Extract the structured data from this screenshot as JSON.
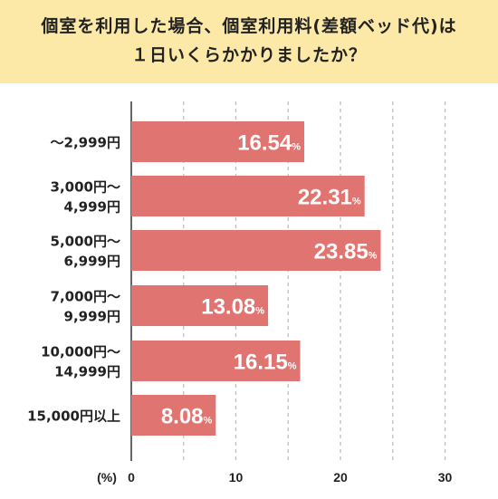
{
  "title": "個室を利用した場合、個室利用料(差額ベッド代)は\n１日いくらかかりましたか？",
  "colors": {
    "title_bg": "#fce9a8",
    "bar": "#e07470",
    "grid": "#bbbbbb",
    "text": "#222222"
  },
  "chart_data": {
    "type": "bar",
    "orientation": "horizontal",
    "title": "個室を利用した場合、個室利用料(差額ベッド代)は １日いくらかかりましたか？",
    "categories": [
      [
        "～2,999円"
      ],
      [
        "3,000円～",
        "4,999円"
      ],
      [
        "5,000円～",
        "6,999円"
      ],
      [
        "7,000円～",
        "9,999円"
      ],
      [
        "10,000円～",
        "14,999円"
      ],
      [
        "15,000円以上"
      ]
    ],
    "values": [
      16.54,
      22.31,
      23.85,
      13.08,
      16.15,
      8.08
    ],
    "value_labels": [
      "16.54",
      "22.31",
      "23.85",
      "13.08",
      "16.15",
      "8.08"
    ],
    "value_suffix": "%",
    "xlabel": "(%)",
    "xlim": [
      0,
      30
    ],
    "xticks": [
      "0",
      "10",
      "20",
      "30"
    ],
    "grid": true
  }
}
